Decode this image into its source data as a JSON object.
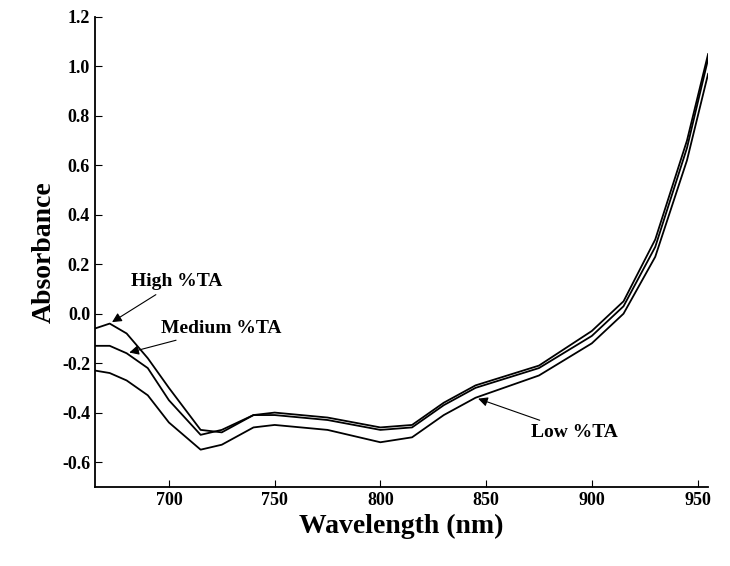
{
  "chart_data": {
    "type": "line",
    "x_label": "Wavelength (nm)",
    "y_label": "Absorbance",
    "x": [
      665,
      672,
      680,
      690,
      700,
      715,
      725,
      740,
      750,
      775,
      800,
      815,
      830,
      845,
      875,
      900,
      915,
      930,
      945,
      955
    ],
    "series": [
      {
        "name": "High %TA",
        "color": "#000000",
        "values": [
          -0.06,
          -0.04,
          -0.08,
          -0.18,
          -0.3,
          -0.47,
          -0.48,
          -0.41,
          -0.4,
          -0.42,
          -0.46,
          -0.45,
          -0.36,
          -0.29,
          -0.21,
          -0.07,
          0.05,
          0.3,
          0.7,
          1.05
        ]
      },
      {
        "name": "Medium %TA",
        "color": "#000000",
        "values": [
          -0.13,
          -0.13,
          -0.16,
          -0.22,
          -0.35,
          -0.49,
          -0.47,
          -0.41,
          -0.41,
          -0.43,
          -0.47,
          -0.46,
          -0.37,
          -0.3,
          -0.22,
          -0.09,
          0.03,
          0.27,
          0.67,
          1.03
        ]
      },
      {
        "name": "Low %TA",
        "color": "#000000",
        "values": [
          -0.23,
          -0.24,
          -0.27,
          -0.33,
          -0.44,
          -0.55,
          -0.53,
          -0.46,
          -0.45,
          -0.47,
          -0.52,
          -0.5,
          -0.41,
          -0.34,
          -0.25,
          -0.12,
          0.0,
          0.23,
          0.62,
          0.97
        ]
      }
    ],
    "xlim": [
      665,
      955
    ],
    "xticks": [
      700,
      750,
      800,
      850,
      900,
      950
    ],
    "ylim": [
      -0.7,
      1.2
    ],
    "yticks": [
      -0.6,
      -0.4,
      -0.2,
      0.0,
      0.2,
      0.4,
      0.6,
      0.8,
      1.0,
      1.2
    ],
    "grid": false
  }
}
